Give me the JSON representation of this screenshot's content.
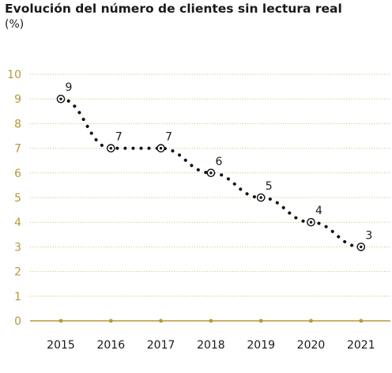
{
  "title": "Evolución del número de clientes sin lectura real",
  "subtitle": "(%)",
  "colors": {
    "axis": "#b5993a",
    "grid": "#c9b56a",
    "line": "#111111",
    "text": "#1a1a1a"
  },
  "chart_data": {
    "type": "line",
    "title": "Evolución del número de clientes sin lectura real",
    "subtitle": "(%)",
    "xlabel": "",
    "ylabel": "",
    "categories": [
      "2015",
      "2016",
      "2017",
      "2018",
      "2019",
      "2020",
      "2021"
    ],
    "values": [
      9,
      7,
      7,
      6,
      5,
      4,
      3
    ],
    "data_labels": [
      "9",
      "7",
      "7",
      "6",
      "5",
      "4",
      "3"
    ],
    "ylim": [
      0,
      10
    ],
    "yticks": [
      "0",
      "1",
      "2",
      "3",
      "4",
      "5",
      "6",
      "7",
      "8",
      "9",
      "10"
    ],
    "grid": true,
    "line_style": "dotted",
    "marker": "circled-dot"
  }
}
